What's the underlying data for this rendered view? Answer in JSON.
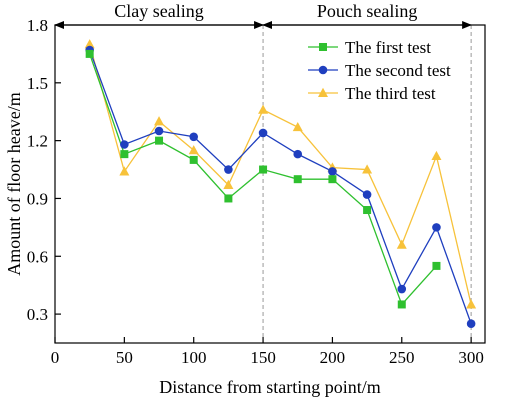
{
  "chart_data": {
    "type": "line",
    "xlabel": "Distance from starting point/m",
    "ylabel": "Amount of floor heave/m",
    "xlim": [
      0,
      310
    ],
    "ylim": [
      0.15,
      1.8
    ],
    "xticks": [
      0,
      50,
      100,
      150,
      200,
      250,
      300
    ],
    "yticks": [
      0.3,
      0.6,
      0.9,
      1.2,
      1.5,
      1.8
    ],
    "xtick_labels": [
      "0",
      "50",
      "100",
      "150",
      "200",
      "250",
      "300"
    ],
    "ytick_labels": [
      "0.3",
      "0.6",
      "0.9",
      "1.2",
      "1.5",
      "1.8"
    ],
    "x": [
      25,
      50,
      75,
      100,
      125,
      150,
      175,
      200,
      225,
      250,
      275,
      300
    ],
    "series": [
      {
        "name": "The first test",
        "color": "#2fc02f",
        "marker": "square",
        "values": [
          1.65,
          1.13,
          1.2,
          1.1,
          0.9,
          1.05,
          1.0,
          1.0,
          0.84,
          0.35,
          0.55,
          null
        ]
      },
      {
        "name": "The second test",
        "color": "#1f3fbf",
        "marker": "circle",
        "values": [
          1.67,
          1.18,
          1.25,
          1.22,
          1.05,
          1.24,
          1.13,
          1.04,
          0.92,
          0.43,
          0.75,
          0.25
        ]
      },
      {
        "name": "The third test",
        "color": "#f7c23a",
        "marker": "triangle",
        "values": [
          1.7,
          1.04,
          1.3,
          1.15,
          0.97,
          1.36,
          1.27,
          1.06,
          1.05,
          0.66,
          1.12,
          0.35
        ]
      }
    ],
    "regions": [
      {
        "label": "Clay sealing",
        "from": 0,
        "to": 150
      },
      {
        "label": "Pouch sealing",
        "from": 150,
        "to": 300
      }
    ],
    "dividers": [
      150,
      300
    ],
    "legend": "top-right",
    "grid": false
  }
}
